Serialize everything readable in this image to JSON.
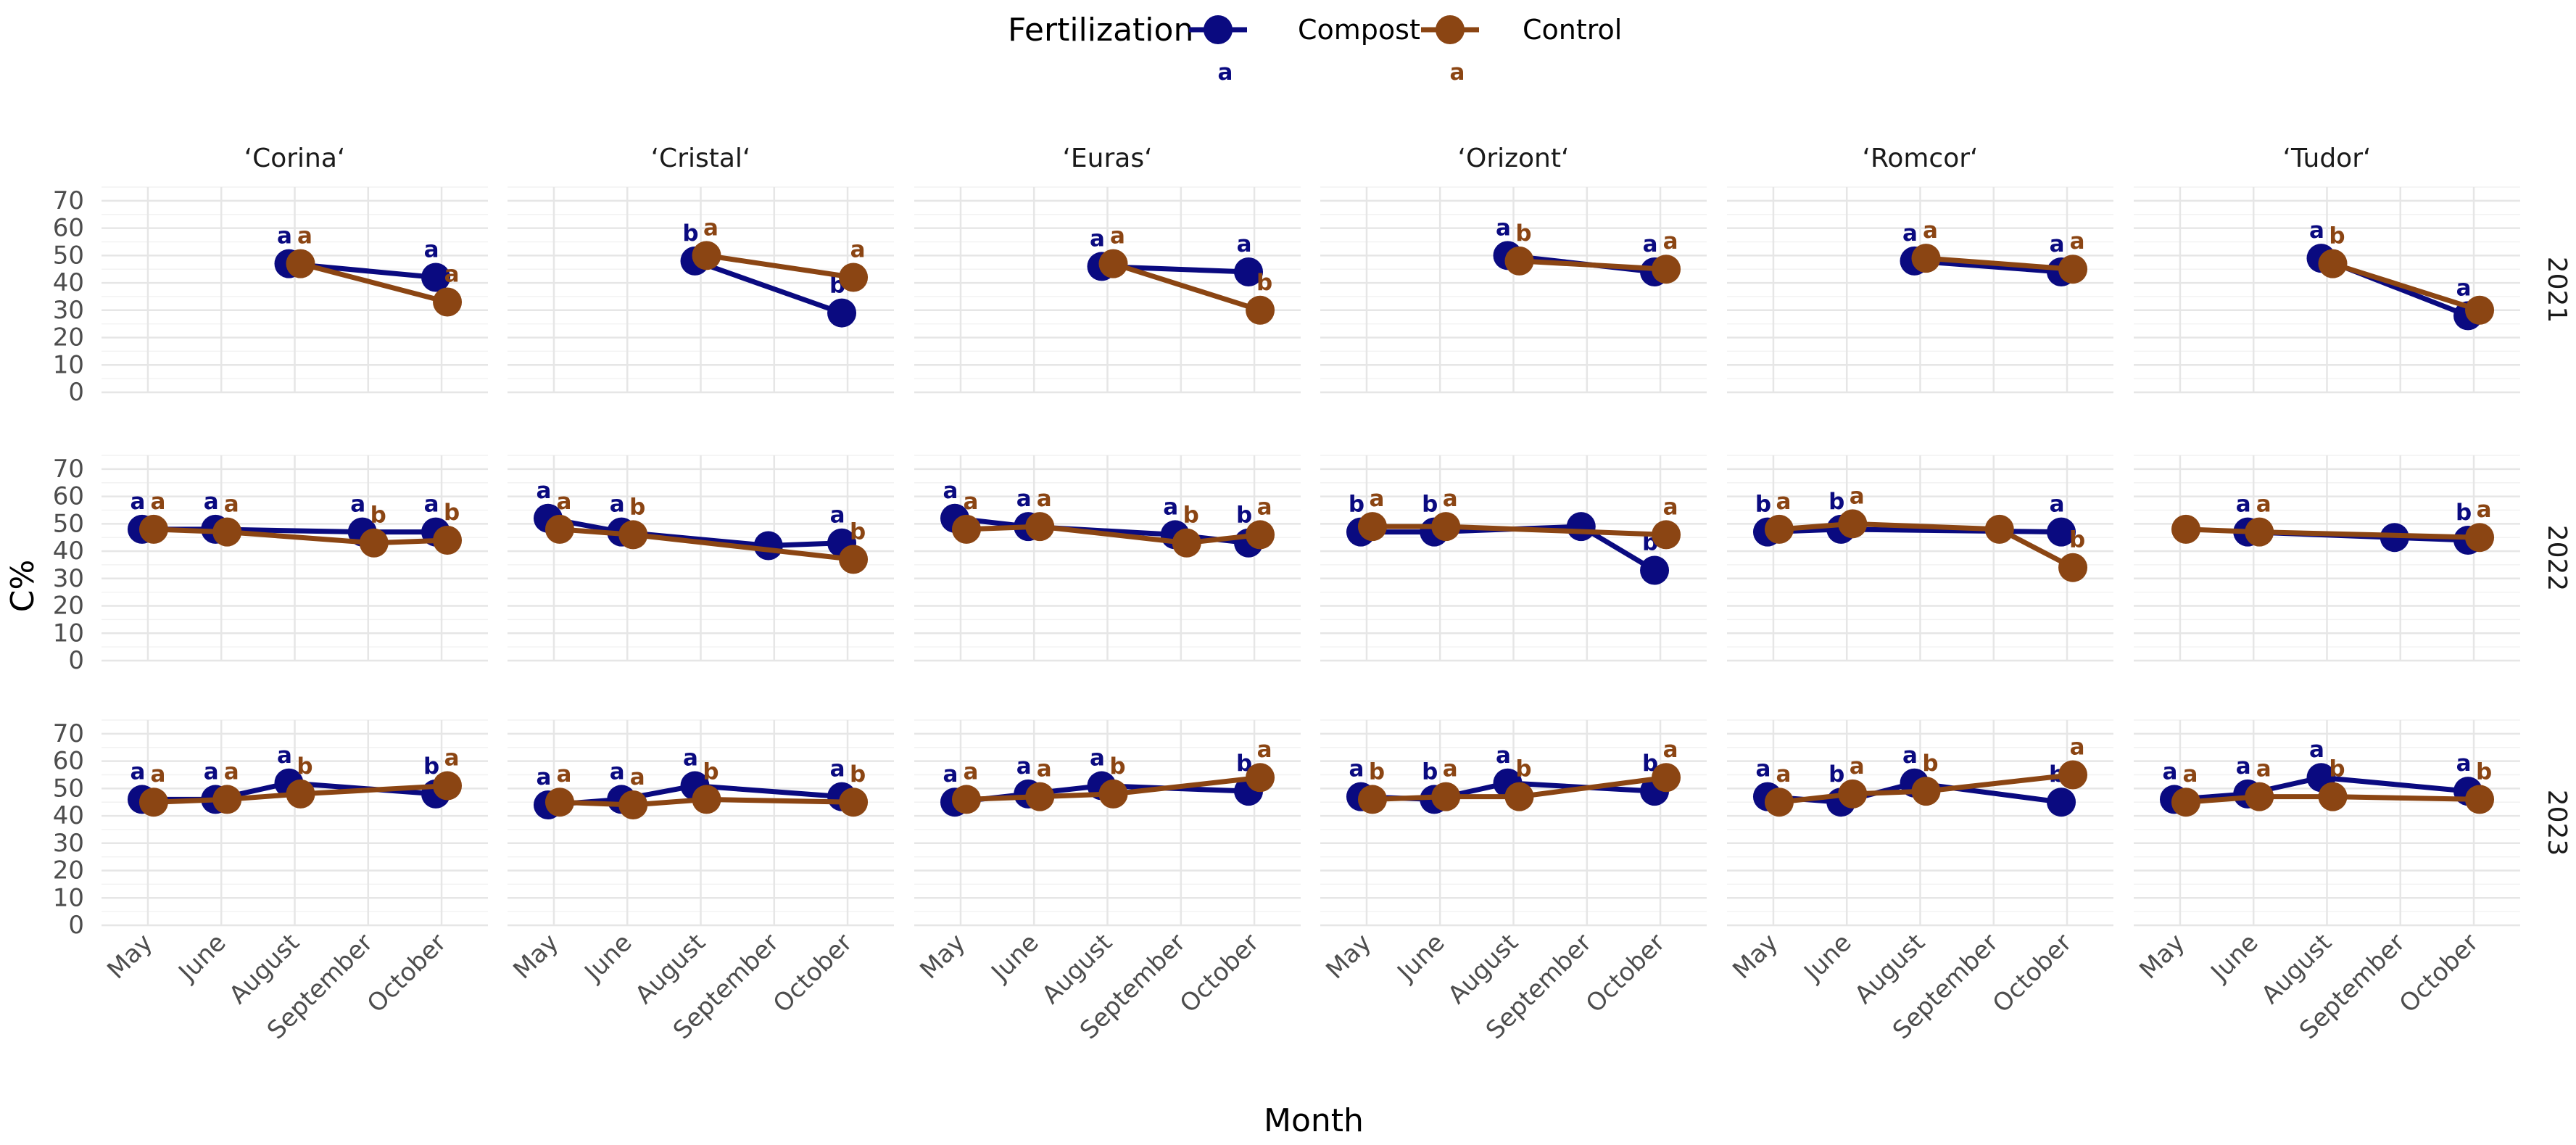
{
  "chart_data": {
    "type": "line",
    "xlabel": "Month",
    "ylabel": "C%",
    "ylim": [
      0,
      75
    ],
    "y_ticks": [
      0,
      10,
      20,
      30,
      40,
      50,
      60,
      70
    ],
    "months": [
      "May",
      "June",
      "August",
      "September",
      "October"
    ],
    "varieties": [
      "‘Corina‘",
      "‘Cristal‘",
      "‘Euras‘",
      "‘Orizont‘",
      "‘Romcor‘",
      "‘Tudor‘"
    ],
    "years": [
      "2021",
      "2022",
      "2023"
    ],
    "legend": {
      "title": "Fertilization",
      "position": "top",
      "entries": [
        {
          "name": "Compost",
          "color": "#0a0a80",
          "letter": "a"
        },
        {
          "name": "Control",
          "color": "#8b4513",
          "letter": "a"
        }
      ]
    },
    "series_colors": {
      "Compost": "#0a0a80",
      "Control": "#8b4513"
    },
    "panels": [
      {
        "variety": "‘Corina‘",
        "year": "2021",
        "series": [
          {
            "name": "Compost",
            "values": [
              null,
              null,
              47,
              null,
              42
            ],
            "letters": [
              null,
              null,
              "a",
              null,
              "a"
            ]
          },
          {
            "name": "Control",
            "values": [
              null,
              null,
              47,
              null,
              33
            ],
            "letters": [
              null,
              null,
              "a",
              null,
              "a"
            ]
          }
        ]
      },
      {
        "variety": "‘Cristal‘",
        "year": "2021",
        "series": [
          {
            "name": "Compost",
            "values": [
              null,
              null,
              48,
              null,
              29
            ],
            "letters": [
              null,
              null,
              "b",
              null,
              "b"
            ]
          },
          {
            "name": "Control",
            "values": [
              null,
              null,
              50,
              null,
              42
            ],
            "letters": [
              null,
              null,
              "a",
              null,
              "a"
            ]
          }
        ]
      },
      {
        "variety": "‘Euras‘",
        "year": "2021",
        "series": [
          {
            "name": "Compost",
            "values": [
              null,
              null,
              46,
              null,
              44
            ],
            "letters": [
              null,
              null,
              "a",
              null,
              "a"
            ]
          },
          {
            "name": "Control",
            "values": [
              null,
              null,
              47,
              null,
              30
            ],
            "letters": [
              null,
              null,
              "a",
              null,
              "b"
            ]
          }
        ]
      },
      {
        "variety": "‘Orizont‘",
        "year": "2021",
        "series": [
          {
            "name": "Compost",
            "values": [
              null,
              null,
              50,
              null,
              44
            ],
            "letters": [
              null,
              null,
              "a",
              null,
              "a"
            ]
          },
          {
            "name": "Control",
            "values": [
              null,
              null,
              48,
              null,
              45
            ],
            "letters": [
              null,
              null,
              "b",
              null,
              "a"
            ]
          }
        ]
      },
      {
        "variety": "‘Romcor‘",
        "year": "2021",
        "series": [
          {
            "name": "Compost",
            "values": [
              null,
              null,
              48,
              null,
              44
            ],
            "letters": [
              null,
              null,
              "a",
              null,
              "a"
            ]
          },
          {
            "name": "Control",
            "values": [
              null,
              null,
              49,
              null,
              45
            ],
            "letters": [
              null,
              null,
              "a",
              null,
              "a"
            ]
          }
        ]
      },
      {
        "variety": "‘Tudor‘",
        "year": "2021",
        "series": [
          {
            "name": "Compost",
            "values": [
              null,
              null,
              49,
              null,
              28
            ],
            "letters": [
              null,
              null,
              "a",
              null,
              "a"
            ]
          },
          {
            "name": "Control",
            "values": [
              null,
              null,
              47,
              null,
              30
            ],
            "letters": [
              null,
              null,
              "b",
              null,
              null
            ]
          }
        ]
      },
      {
        "variety": "‘Corina‘",
        "year": "2022",
        "series": [
          {
            "name": "Compost",
            "values": [
              48,
              48,
              null,
              47,
              47
            ],
            "letters": [
              "a",
              "a",
              null,
              "a",
              "a"
            ]
          },
          {
            "name": "Control",
            "values": [
              48,
              47,
              null,
              43,
              44
            ],
            "letters": [
              "a",
              "a",
              null,
              "b",
              "b"
            ]
          }
        ]
      },
      {
        "variety": "‘Cristal‘",
        "year": "2022",
        "series": [
          {
            "name": "Compost",
            "values": [
              52,
              47,
              null,
              42,
              43
            ],
            "letters": [
              "a",
              "a",
              null,
              null,
              "a"
            ]
          },
          {
            "name": "Control",
            "values": [
              48,
              46,
              null,
              null,
              37
            ],
            "letters": [
              "a",
              "b",
              null,
              null,
              "b"
            ]
          }
        ]
      },
      {
        "variety": "‘Euras‘",
        "year": "2022",
        "series": [
          {
            "name": "Compost",
            "values": [
              52,
              49,
              null,
              46,
              43
            ],
            "letters": [
              "a",
              "a",
              null,
              "a",
              "b"
            ]
          },
          {
            "name": "Control",
            "values": [
              48,
              49,
              null,
              43,
              46
            ],
            "letters": [
              "a",
              "a",
              null,
              "b",
              "a"
            ]
          }
        ]
      },
      {
        "variety": "‘Orizont‘",
        "year": "2022",
        "series": [
          {
            "name": "Compost",
            "values": [
              47,
              47,
              null,
              49,
              33
            ],
            "letters": [
              "b",
              "b",
              null,
              null,
              "b"
            ]
          },
          {
            "name": "Control",
            "values": [
              49,
              49,
              null,
              null,
              46
            ],
            "letters": [
              "a",
              "a",
              null,
              null,
              "a"
            ]
          }
        ]
      },
      {
        "variety": "‘Romcor‘",
        "year": "2022",
        "series": [
          {
            "name": "Compost",
            "values": [
              47,
              48,
              null,
              null,
              47
            ],
            "letters": [
              "b",
              "b",
              null,
              null,
              "a"
            ]
          },
          {
            "name": "Control",
            "values": [
              48,
              50,
              null,
              48,
              34
            ],
            "letters": [
              "a",
              "a",
              null,
              null,
              "b"
            ]
          }
        ]
      },
      {
        "variety": "‘Tudor‘",
        "year": "2022",
        "series": [
          {
            "name": "Compost",
            "values": [
              null,
              47,
              null,
              45,
              44
            ],
            "letters": [
              null,
              "a",
              null,
              null,
              "b"
            ]
          },
          {
            "name": "Control",
            "values": [
              48,
              47,
              null,
              null,
              45
            ],
            "letters": [
              null,
              "a",
              null,
              null,
              "a"
            ]
          }
        ]
      },
      {
        "variety": "‘Corina‘",
        "year": "2023",
        "series": [
          {
            "name": "Compost",
            "values": [
              46,
              46,
              52,
              null,
              48
            ],
            "letters": [
              "a",
              "a",
              "a",
              null,
              "b"
            ]
          },
          {
            "name": "Control",
            "values": [
              45,
              46,
              48,
              null,
              51
            ],
            "letters": [
              "a",
              "a",
              "b",
              null,
              "a"
            ]
          }
        ]
      },
      {
        "variety": "‘Cristal‘",
        "year": "2023",
        "series": [
          {
            "name": "Compost",
            "values": [
              44,
              46,
              51,
              null,
              47
            ],
            "letters": [
              "a",
              "a",
              "a",
              null,
              "a"
            ]
          },
          {
            "name": "Control",
            "values": [
              45,
              44,
              46,
              null,
              45
            ],
            "letters": [
              "a",
              "a",
              "b",
              null,
              "b"
            ]
          }
        ]
      },
      {
        "variety": "‘Euras‘",
        "year": "2023",
        "series": [
          {
            "name": "Compost",
            "values": [
              45,
              48,
              51,
              null,
              49
            ],
            "letters": [
              "a",
              "a",
              "a",
              null,
              "b"
            ]
          },
          {
            "name": "Control",
            "values": [
              46,
              47,
              48,
              null,
              54
            ],
            "letters": [
              "a",
              "a",
              "b",
              null,
              "a"
            ]
          }
        ]
      },
      {
        "variety": "‘Orizont‘",
        "year": "2023",
        "series": [
          {
            "name": "Compost",
            "values": [
              47,
              46,
              52,
              null,
              49
            ],
            "letters": [
              "a",
              "b",
              "a",
              null,
              "b"
            ]
          },
          {
            "name": "Control",
            "values": [
              46,
              47,
              47,
              null,
              54
            ],
            "letters": [
              "b",
              "a",
              "b",
              null,
              "a"
            ]
          }
        ]
      },
      {
        "variety": "‘Romcor‘",
        "year": "2023",
        "series": [
          {
            "name": "Compost",
            "values": [
              47,
              45,
              52,
              null,
              45
            ],
            "letters": [
              "a",
              "b",
              "a",
              null,
              "b"
            ]
          },
          {
            "name": "Control",
            "values": [
              45,
              48,
              49,
              null,
              55
            ],
            "letters": [
              "a",
              "a",
              "b",
              null,
              "a"
            ]
          }
        ]
      },
      {
        "variety": "‘Tudor‘",
        "year": "2023",
        "series": [
          {
            "name": "Compost",
            "values": [
              46,
              48,
              54,
              null,
              49
            ],
            "letters": [
              "a",
              "a",
              "a",
              null,
              "a"
            ]
          },
          {
            "name": "Control",
            "values": [
              45,
              47,
              47,
              null,
              46
            ],
            "letters": [
              "a",
              "a",
              "b",
              null,
              "b"
            ]
          }
        ]
      }
    ]
  }
}
